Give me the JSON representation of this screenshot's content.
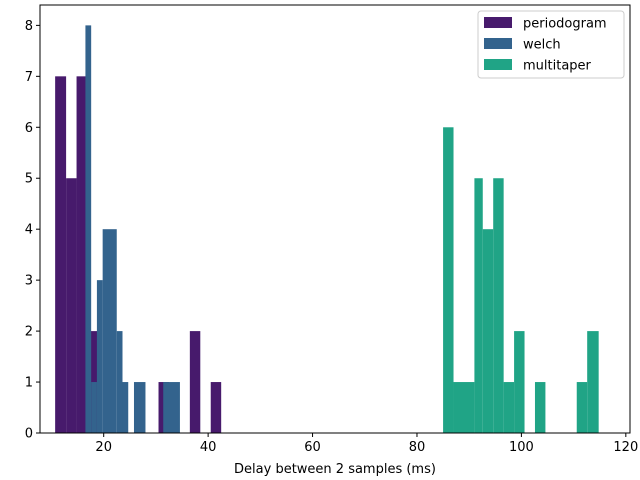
{
  "chart_data": {
    "type": "bar",
    "title": "",
    "xlabel": "Delay between 2 samples (ms)",
    "ylabel": "",
    "xlim": [
      7.8,
      120.8
    ],
    "ylim": [
      0,
      8.4
    ],
    "xticks": [
      20,
      40,
      60,
      80,
      100,
      120
    ],
    "yticks": [
      0,
      1,
      2,
      3,
      4,
      5,
      6,
      7,
      8
    ],
    "legend_position": "top-right",
    "series": [
      {
        "name": "periodogram",
        "color": "#471a6c",
        "bins": [
          {
            "x0": 10.7,
            "x1": 12.8,
            "value": 7
          },
          {
            "x0": 12.8,
            "x1": 14.8,
            "value": 5
          },
          {
            "x0": 14.8,
            "x1": 16.8,
            "value": 7
          },
          {
            "x0": 16.8,
            "x1": 18.8,
            "value": 2
          },
          {
            "x0": 30.5,
            "x1": 32.5,
            "value": 1
          },
          {
            "x0": 36.5,
            "x1": 38.5,
            "value": 2
          },
          {
            "x0": 40.5,
            "x1": 42.5,
            "value": 1
          }
        ]
      },
      {
        "name": "welch",
        "color": "#33638d",
        "bins": [
          {
            "x0": 16.5,
            "x1": 17.6,
            "value": 8
          },
          {
            "x0": 17.6,
            "x1": 18.7,
            "value": 1
          },
          {
            "x0": 18.7,
            "x1": 19.8,
            "value": 3
          },
          {
            "x0": 19.8,
            "x1": 22.5,
            "value": 4
          },
          {
            "x0": 22.5,
            "x1": 23.6,
            "value": 2
          },
          {
            "x0": 23.6,
            "x1": 24.7,
            "value": 1
          },
          {
            "x0": 25.8,
            "x1": 28.0,
            "value": 1
          },
          {
            "x0": 31.4,
            "x1": 34.6,
            "value": 1
          }
        ]
      },
      {
        "name": "multitaper",
        "color": "#20a486",
        "bins": [
          {
            "x0": 85.0,
            "x1": 87.0,
            "value": 6
          },
          {
            "x0": 87.0,
            "x1": 91.0,
            "value": 1
          },
          {
            "x0": 91.0,
            "x1": 92.6,
            "value": 5
          },
          {
            "x0": 92.6,
            "x1": 94.6,
            "value": 4
          },
          {
            "x0": 94.6,
            "x1": 96.6,
            "value": 5
          },
          {
            "x0": 96.6,
            "x1": 98.6,
            "value": 1
          },
          {
            "x0": 98.6,
            "x1": 100.6,
            "value": 2
          },
          {
            "x0": 102.6,
            "x1": 104.6,
            "value": 1
          },
          {
            "x0": 110.6,
            "x1": 112.6,
            "value": 1
          },
          {
            "x0": 112.6,
            "x1": 114.8,
            "value": 2
          }
        ]
      }
    ]
  }
}
